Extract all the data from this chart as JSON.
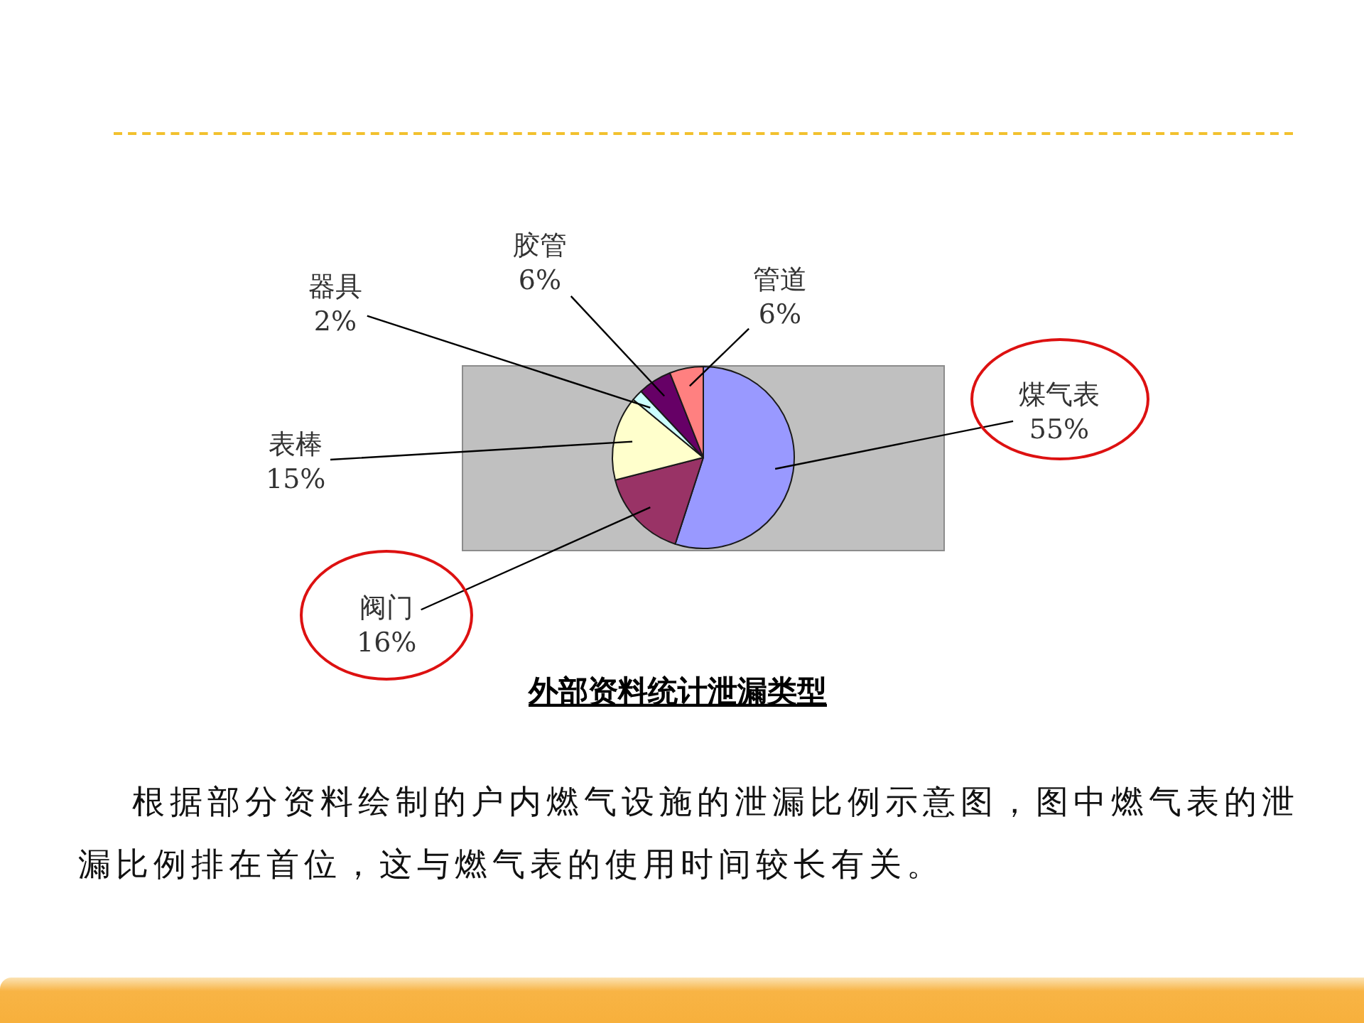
{
  "chart_data": {
    "type": "pie",
    "title": "外部资料统计泄漏类型",
    "categories": [
      "煤气表",
      "阀门",
      "表棒",
      "器具",
      "胶管",
      "管道"
    ],
    "values": [
      55,
      16,
      15,
      2,
      6,
      6
    ],
    "value_labels": [
      "55%",
      "16%",
      "15%",
      "2%",
      "6%",
      "6%"
    ],
    "colors": [
      "#9999ff",
      "#993366",
      "#ffffcc",
      "#ccffff",
      "#660066",
      "#ff8080"
    ],
    "legend": false,
    "annotations": [
      "根据部分资料绘制的户内燃气设施的泄漏比例示意图，图中燃气表的泄漏比例排在首位，这与燃气表的使用时间较长有关。"
    ]
  }
}
